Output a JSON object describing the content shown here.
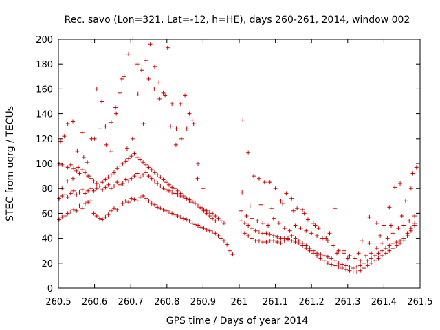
{
  "chart_data": {
    "type": "scatter",
    "title": "Rec. savo (Lon=321, Lat=-12, h=HE), days 260-261, 2014, window 002",
    "xlabel": "GPS time / Days of year 2014",
    "ylabel": "STEC from uqrg / TECUs",
    "xlim": [
      260.5,
      261.5
    ],
    "ylim": [
      0,
      200
    ],
    "xticks": [
      260.5,
      260.6,
      260.7,
      260.8,
      260.9,
      261,
      261.1,
      261.2,
      261.3,
      261.4,
      261.5
    ],
    "xtick_labels": [
      "260.5",
      "260.6",
      "260.7",
      "260.8",
      "260.9",
      "261",
      "261.1",
      "261.2",
      "261.3",
      "261.4",
      "261.5"
    ],
    "yticks": [
      0,
      20,
      40,
      60,
      80,
      100,
      120,
      140,
      160,
      180,
      200
    ],
    "ytick_labels": [
      "0",
      "20",
      "40",
      "60",
      "80",
      "100",
      "120",
      "140",
      "160",
      "180",
      "200"
    ],
    "grid": false,
    "marker": "plus",
    "color": "#cc0000",
    "series": [
      {
        "x": [
          260.502,
          260.51,
          260.518,
          260.526,
          260.534,
          260.542,
          260.55,
          260.558,
          260.566,
          260.574,
          260.582,
          260.59,
          260.598,
          260.606,
          260.614,
          260.622,
          260.63,
          260.638,
          260.646,
          260.654,
          260.662,
          260.67,
          260.678,
          260.686,
          260.694,
          260.702,
          260.71,
          260.718,
          260.726,
          260.734,
          260.742,
          260.75,
          260.758,
          260.766,
          260.774,
          260.782,
          260.79,
          260.798,
          260.806,
          260.814,
          260.822,
          260.83,
          260.838,
          260.846,
          260.854,
          260.862,
          260.87,
          260.878,
          260.886,
          260.894,
          260.902,
          260.91,
          260.918,
          260.926,
          260.934,
          260.942,
          260.95,
          260.958,
          260.966,
          260.974,
          260.982
        ],
        "y": [
          55,
          57,
          58,
          60,
          61,
          63,
          62,
          66,
          64,
          68,
          69,
          70,
          60,
          58,
          56,
          55,
          57,
          59,
          62,
          64,
          63,
          66,
          68,
          70,
          69,
          72,
          71,
          70,
          73,
          74,
          72,
          70,
          68,
          67,
          65,
          64,
          63,
          62,
          61,
          60,
          59,
          58,
          57,
          56,
          55,
          54,
          52,
          51,
          50,
          49,
          48,
          47,
          46,
          45,
          44,
          42,
          40,
          38,
          35,
          30,
          27
        ]
      },
      {
        "x": [
          260.502,
          260.51,
          260.518,
          260.526,
          260.534,
          260.542,
          260.55,
          260.558,
          260.566,
          260.574,
          260.582,
          260.59,
          260.598,
          260.606,
          260.614,
          260.622,
          260.63,
          260.638,
          260.646,
          260.654,
          260.662,
          260.67,
          260.678,
          260.686,
          260.694,
          260.702,
          260.71,
          260.718,
          260.726,
          260.734,
          260.742,
          260.75,
          260.758,
          260.766,
          260.774,
          260.782,
          260.79,
          260.798,
          260.806,
          260.814,
          260.822,
          260.83,
          260.838,
          260.846,
          260.854,
          260.862,
          260.87,
          260.878,
          260.886,
          260.894,
          260.902,
          260.91,
          260.918,
          260.926,
          260.934,
          260.942,
          260.95,
          260.958
        ],
        "y": [
          72,
          74,
          75,
          73,
          76,
          78,
          75,
          77,
          79,
          76,
          78,
          80,
          78,
          80,
          82,
          79,
          81,
          83,
          80,
          82,
          85,
          83,
          84,
          87,
          86,
          88,
          90,
          92,
          89,
          91,
          93,
          90,
          88,
          86,
          84,
          82,
          80,
          79,
          78,
          77,
          76,
          75,
          74,
          73,
          72,
          70,
          69,
          68,
          66,
          65,
          63,
          62,
          61,
          60,
          58,
          56,
          54,
          52
        ]
      },
      {
        "x": [
          260.502,
          260.51,
          260.518,
          260.526,
          260.534,
          260.542,
          260.55,
          260.558,
          260.566,
          260.574,
          260.582,
          260.59,
          260.598,
          260.606,
          260.614,
          260.622,
          260.63,
          260.638,
          260.646,
          260.654,
          260.662,
          260.67,
          260.678,
          260.686,
          260.694,
          260.702,
          260.71,
          260.718,
          260.726,
          260.734,
          260.742,
          260.75,
          260.758,
          260.766,
          260.774,
          260.782,
          260.79,
          260.798,
          260.806,
          260.814,
          260.822,
          260.83,
          260.838,
          260.846,
          260.854,
          260.862,
          260.87,
          260.878,
          260.886,
          260.894,
          260.902,
          260.91,
          260.918,
          260.926,
          260.934
        ],
        "y": [
          100,
          99,
          98,
          97,
          99,
          96,
          94,
          92,
          95,
          93,
          90,
          88,
          86,
          84,
          82,
          85,
          87,
          89,
          91,
          93,
          96,
          98,
          100,
          102,
          104,
          106,
          108,
          105,
          103,
          101,
          99,
          97,
          95,
          93,
          91,
          89,
          87,
          85,
          83,
          81,
          80,
          78,
          76,
          74,
          72,
          71,
          70,
          68,
          66,
          64,
          62,
          60,
          58,
          56,
          54
        ]
      },
      {
        "x": [
          260.506,
          260.516,
          260.526,
          260.54,
          260.552,
          260.566,
          260.58,
          260.592,
          260.606,
          260.62,
          260.632,
          260.646,
          260.658,
          260.67,
          260.682,
          260.694,
          260.706,
          260.718,
          260.73,
          260.742,
          260.754,
          260.766,
          260.778,
          260.79,
          260.802,
          260.814,
          260.826,
          260.838,
          260.85,
          260.862,
          260.874,
          260.886,
          260.9
        ],
        "y": [
          118,
          122,
          132,
          134,
          110,
          125,
          101,
          120,
          160,
          150,
          115,
          133,
          145,
          157,
          170,
          188,
          200,
          180,
          175,
          183,
          196,
          178,
          165,
          157,
          193,
          148,
          128,
          148,
          155,
          140,
          132,
          100,
          80
        ]
      },
      {
        "x": [
          260.51,
          260.525,
          260.54,
          260.555,
          260.57,
          260.585,
          260.6,
          260.615,
          260.63,
          260.645,
          260.66,
          260.675,
          260.69,
          260.705,
          260.72,
          260.735,
          260.75,
          260.765,
          260.78,
          260.795,
          260.81,
          260.825,
          260.84,
          260.855,
          260.87,
          260.885
        ],
        "y": [
          80,
          86,
          88,
          97,
          105,
          90,
          120,
          128,
          130,
          110,
          140,
          168,
          112,
          120,
          156,
          132,
          168,
          160,
          152,
          155,
          130,
          115,
          120,
          128,
          135,
          88
        ]
      },
      {
        "x": [
          261.005,
          261.015,
          261.025,
          261.035,
          261.045,
          261.055,
          261.065,
          261.075,
          261.085,
          261.095,
          261.105,
          261.115,
          261.125,
          261.135,
          261.145,
          261.155,
          261.165,
          261.175,
          261.185,
          261.195,
          261.205,
          261.215,
          261.225,
          261.235,
          261.245,
          261.255,
          261.265,
          261.275,
          261.285,
          261.295,
          261.305,
          261.315,
          261.325,
          261.335,
          261.345,
          261.355,
          261.365,
          261.375,
          261.385,
          261.395,
          261.405,
          261.415,
          261.425,
          261.435,
          261.445,
          261.455,
          261.465,
          261.475,
          261.485
        ],
        "y": [
          54,
          52,
          50,
          48,
          46,
          45,
          44,
          44,
          43,
          42,
          41,
          40,
          40,
          39,
          38,
          37,
          36,
          34,
          32,
          30,
          28,
          26,
          24,
          22,
          20,
          19,
          18,
          17,
          16,
          15,
          14,
          13,
          13,
          14,
          16,
          18,
          20,
          22,
          24,
          26,
          28,
          30,
          32,
          34,
          36,
          38,
          42,
          46,
          50
        ]
      },
      {
        "x": [
          261.005,
          261.015,
          261.025,
          261.035,
          261.045,
          261.055,
          261.065,
          261.075,
          261.085,
          261.095,
          261.105,
          261.115,
          261.125,
          261.135,
          261.145,
          261.155,
          261.165,
          261.175,
          261.185,
          261.195,
          261.205,
          261.215,
          261.225,
          261.235,
          261.245,
          261.255,
          261.265,
          261.275,
          261.285,
          261.295,
          261.305,
          261.315,
          261.325,
          261.335,
          261.345,
          261.355,
          261.365,
          261.375,
          261.385,
          261.395,
          261.405,
          261.415,
          261.425,
          261.435,
          261.445,
          261.455,
          261.465,
          261.475,
          261.485
        ],
        "y": [
          45,
          44,
          42,
          40,
          38,
          38,
          37,
          37,
          38,
          38,
          37,
          36,
          38,
          40,
          42,
          40,
          38,
          36,
          34,
          32,
          30,
          28,
          27,
          26,
          25,
          24,
          22,
          20,
          19,
          18,
          17,
          16,
          17,
          18,
          20,
          22,
          24,
          26,
          28,
          30,
          32,
          34,
          36,
          37,
          38,
          40,
          44,
          48,
          52
        ]
      },
      {
        "x": [
          261.005,
          261.02,
          261.035,
          261.05,
          261.065,
          261.08,
          261.095,
          261.11,
          261.125,
          261.14,
          261.155,
          261.17,
          261.185,
          261.2,
          261.215,
          261.23,
          261.245,
          261.26,
          261.275,
          261.29,
          261.305,
          261.32,
          261.335,
          261.35,
          261.365,
          261.38,
          261.395,
          261.41,
          261.425,
          261.44,
          261.455,
          261.47,
          261.485
        ],
        "y": [
          62,
          58,
          56,
          54,
          52,
          50,
          56,
          52,
          48,
          46,
          50,
          48,
          46,
          44,
          42,
          40,
          38,
          34,
          30,
          28,
          26,
          24,
          22,
          26,
          28,
          32,
          36,
          40,
          44,
          48,
          50,
          54,
          58
        ]
      },
      {
        "x": [
          261.01,
          261.025,
          261.04,
          261.055,
          261.07,
          261.085,
          261.1,
          261.115,
          261.13,
          261.145,
          261.16,
          261.175,
          261.19,
          261.205,
          261.22,
          261.235,
          261.25,
          261.265,
          261.29,
          261.34,
          261.36,
          261.38,
          261.4,
          261.415,
          261.43,
          261.445,
          261.46,
          261.475,
          261.49
        ],
        "y": [
          135,
          109,
          90,
          88,
          85,
          85,
          80,
          70,
          76,
          72,
          64,
          63,
          55,
          52,
          48,
          45,
          44,
          64,
          30,
          38,
          57,
          52,
          50,
          65,
          81,
          84,
          70,
          80,
          97
        ]
      },
      {
        "x": [
          261.008,
          261.03,
          261.06,
          261.09,
          261.12,
          261.15,
          261.18,
          261.21,
          261.24,
          261.27,
          261.3,
          261.33,
          261.36,
          261.39,
          261.42,
          261.45,
          261.48
        ],
        "y": [
          77,
          66,
          67,
          64,
          68,
          62,
          60,
          50,
          40,
          28,
          24,
          28,
          36,
          42,
          50,
          58,
          92
        ]
      }
    ]
  }
}
